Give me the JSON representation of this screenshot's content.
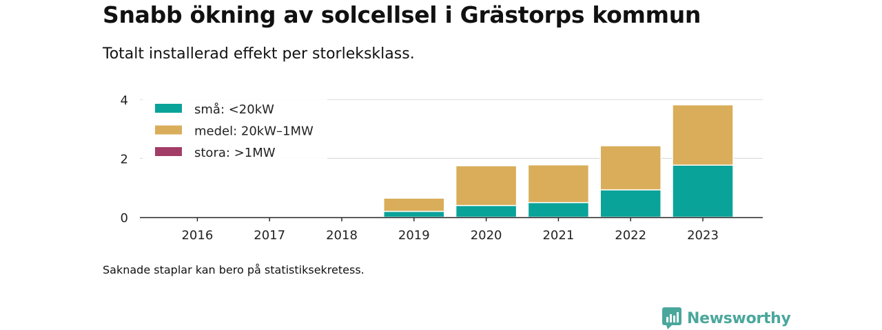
{
  "title": "Snabb ökning av solcellsel i Grästorps kommun",
  "subtitle": "Totalt installerad effekt per storleksklass.",
  "note": "Saknade staplar kan bero på statistiksekretess.",
  "brand": {
    "name": "Newsworthy",
    "icon": "newsworthy-logo-icon"
  },
  "colors": {
    "small": "#0aa39a",
    "medium": "#d9ad5a",
    "large": "#a23d67",
    "axis": "#222222",
    "grid": "#dddddd"
  },
  "chart_data": {
    "type": "bar",
    "stacked": true,
    "categories": [
      "2016",
      "2017",
      "2018",
      "2019",
      "2020",
      "2021",
      "2022",
      "2023"
    ],
    "series": [
      {
        "name": "små: <20kW",
        "color": "#0aa39a",
        "values": [
          0,
          0,
          0,
          0.2,
          0.4,
          0.5,
          0.93,
          1.77
        ]
      },
      {
        "name": "medel: 20kW–1MW",
        "color": "#d9ad5a",
        "values": [
          0,
          0,
          0,
          0.45,
          1.35,
          1.28,
          1.5,
          2.05
        ]
      },
      {
        "name": "stora: >1MW",
        "color": "#a23d67",
        "values": [
          0,
          0,
          0,
          0,
          0,
          0,
          0,
          0
        ]
      }
    ],
    "y_ticks": [
      "0",
      "2",
      "4"
    ],
    "ylim": [
      0,
      4.3
    ],
    "grid": true,
    "legend_position": "top-left",
    "xlabel": "",
    "ylabel": ""
  }
}
